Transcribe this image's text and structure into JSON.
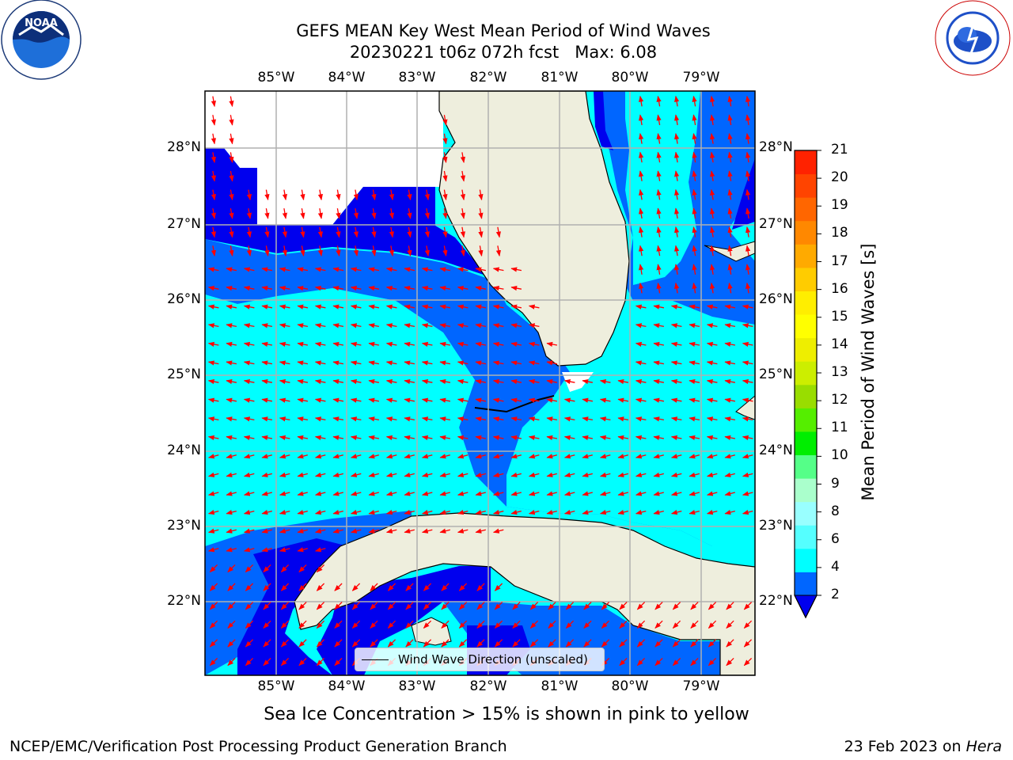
{
  "header": {
    "title_line1": "GEFS MEAN Key West Mean Period of Wind Waves",
    "title_line2": "20230221 t06z 072h fcst   Max: 6.08"
  },
  "logos": {
    "left": "noaa-logo",
    "right": "national-weather-service-logo"
  },
  "map": {
    "lon_ticks": [
      "85°W",
      "84°W",
      "83°W",
      "82°W",
      "81°W",
      "80°W",
      "79°W"
    ],
    "lat_ticks": [
      "28°N",
      "27°N",
      "26°N",
      "25°N",
      "24°N",
      "23°N",
      "22°N"
    ],
    "legend_text": "Wind Wave Direction (unscaled)",
    "colors": {
      "land": "#eeeedd",
      "band_2_4": "#0066ff",
      "band_4_6": "#00ffff",
      "band_6_8": "#55ffff",
      "below_2": "#0000ee",
      "arrow": "#ff0000",
      "grid": "#b0b0b0"
    }
  },
  "colorbar": {
    "label": "Mean Period of Wind Waves [s]",
    "ticks": [
      "21",
      "20",
      "19",
      "18",
      "17",
      "16",
      "15",
      "14",
      "13",
      "12",
      "11",
      "10",
      "9",
      "8",
      "6",
      "4",
      "2"
    ],
    "colors": [
      "#0066ff",
      "#00ffff",
      "#55ffff",
      "#99ffff",
      "#aaffcc",
      "#55ff88",
      "#00ee00",
      "#55ee00",
      "#99dd00",
      "#ccee00",
      "#eeee00",
      "#ffff00",
      "#ffee00",
      "#ffcc00",
      "#ffaa00",
      "#ff8800",
      "#ff6600",
      "#ff4400",
      "#ff2200"
    ],
    "under_color": "#0000ee"
  },
  "subtitle": "Sea Ice Concentration > 15% is shown in pink to yellow",
  "footer": {
    "left": "NCEP/EMC/Verification Post Processing Product Generation Branch",
    "right_prefix": "23 Feb 2023 on ",
    "right_host": "Hera"
  }
}
